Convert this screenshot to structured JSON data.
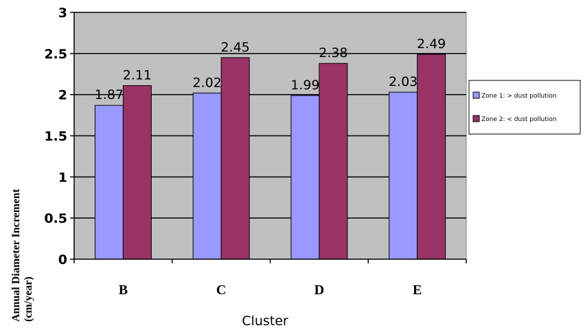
{
  "chart_data": {
    "type": "bar",
    "title": "",
    "xlabel": "Cluster",
    "ylabel_lines": [
      "Annual Diameter Increment",
      "(cm/year)"
    ],
    "categories": [
      "B",
      "C",
      "D",
      "E"
    ],
    "ylim": [
      0,
      3
    ],
    "yticks": [
      "0",
      "0.5",
      "1",
      "1.5",
      "2",
      "2.5",
      "3"
    ],
    "grid": true,
    "legend_position": "right",
    "series": [
      {
        "name": "Zone 1: > dust pollution",
        "color": "#9999ff",
        "values": [
          1.87,
          2.02,
          1.99,
          2.03
        ],
        "labels": [
          "1.87",
          "2.02",
          "1.99",
          "2.03"
        ]
      },
      {
        "name": "Zone 2: < dust pollution",
        "color": "#993366",
        "values": [
          2.11,
          2.45,
          2.38,
          2.49
        ],
        "labels": [
          "2.11",
          "2.45",
          "2.38",
          "2.49"
        ]
      }
    ],
    "plot_background": "#c0c0c0"
  }
}
